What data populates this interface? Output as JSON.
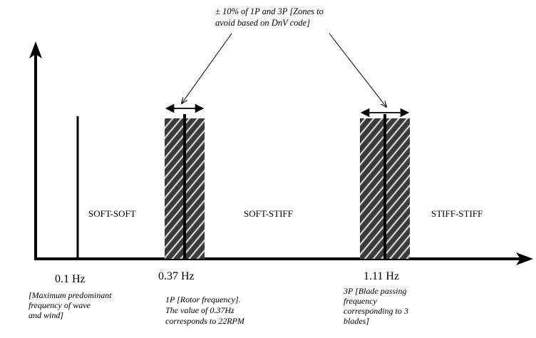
{
  "annotation": {
    "line1": "± 10% of 1P and 3P [Zones to",
    "line2": "avoid based on DnV code]"
  },
  "regions": {
    "soft_soft": "SOFT-SOFT",
    "soft_stiff": "SOFT-STIFF",
    "stiff_stiff": "STIFF-STIFF"
  },
  "markers": {
    "m01": {
      "freq": "0.1 Hz",
      "desc": [
        "[Maximum predominant",
        "frequency of wave",
        "and wind]"
      ]
    },
    "m1p": {
      "freq": "0.37 Hz",
      "desc": [
        "1P [Rotor frequency].",
        "The value of 0.37Hz",
        "corresponds to 22RPM"
      ]
    },
    "m3p": {
      "freq": "1.11 Hz",
      "desc": [
        "3P [Blade passing",
        "frequency",
        "corresponding to 3",
        "blades]"
      ]
    }
  },
  "colors": {
    "hatch_bg": "#3a3a3a",
    "hatch_line": "#d8d8d8",
    "ink": "#000000"
  }
}
